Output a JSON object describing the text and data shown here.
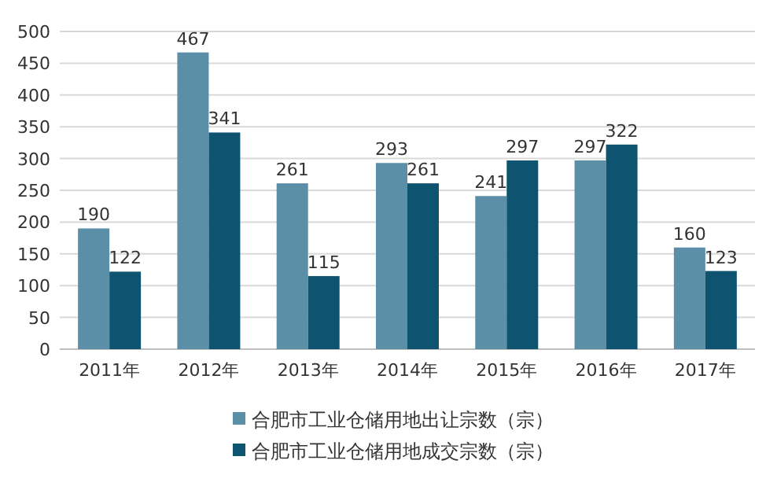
{
  "chart_data": {
    "type": "bar",
    "categories": [
      "2011年",
      "2012年",
      "2013年",
      "2014年",
      "2015年",
      "2016年",
      "2017年"
    ],
    "series": [
      {
        "name": "合肥市工业仓储用地出让宗数（宗）",
        "color": "#5b8fa8",
        "values": [
          190,
          467,
          261,
          293,
          241,
          297,
          160
        ]
      },
      {
        "name": "合肥市工业仓储用地成交宗数（宗）",
        "color": "#0e5470",
        "values": [
          122,
          341,
          115,
          261,
          297,
          322,
          123
        ]
      }
    ],
    "ylim": [
      0,
      500
    ],
    "yticks": [
      0,
      50,
      100,
      150,
      200,
      250,
      300,
      350,
      400,
      450,
      500
    ],
    "grid": "y",
    "legend": "bottom",
    "data_labels": true
  }
}
